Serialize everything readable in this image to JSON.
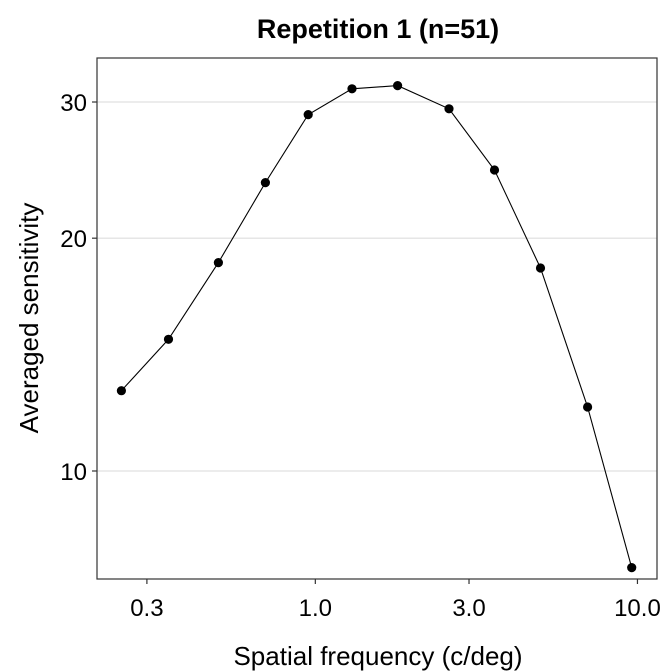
{
  "chart_data": {
    "type": "line",
    "title": "Repetition 1 (n=51)",
    "xlabel": "Spatial frequency (c/deg)",
    "ylabel": "Averaged sensitivity",
    "x_scale": "log",
    "y_scale": "log",
    "xlim": [
      0.21,
      11.5
    ],
    "ylim": [
      7.25,
      34.2
    ],
    "x_ticks": [
      0.3,
      1.0,
      3.0,
      10.0
    ],
    "x_tick_labels": [
      "0.3",
      "1.0",
      "3.0",
      "10.0"
    ],
    "y_ticks": [
      10,
      20,
      30
    ],
    "y_tick_labels": [
      "10",
      "20",
      "30"
    ],
    "grid": "horizontal major lines",
    "legend": "none",
    "series": [
      {
        "x": [
          0.25,
          0.35,
          0.5,
          0.7,
          0.95,
          1.3,
          1.8,
          2.6,
          3.6,
          5.0,
          7.0,
          9.6
        ],
        "y": [
          12.7,
          14.8,
          18.6,
          23.6,
          28.9,
          31.2,
          31.5,
          29.4,
          24.5,
          18.3,
          12.1,
          7.5
        ]
      }
    ],
    "colors": {
      "series": "#000000",
      "grid": "#e6e6e6",
      "frame": "#333333"
    }
  }
}
